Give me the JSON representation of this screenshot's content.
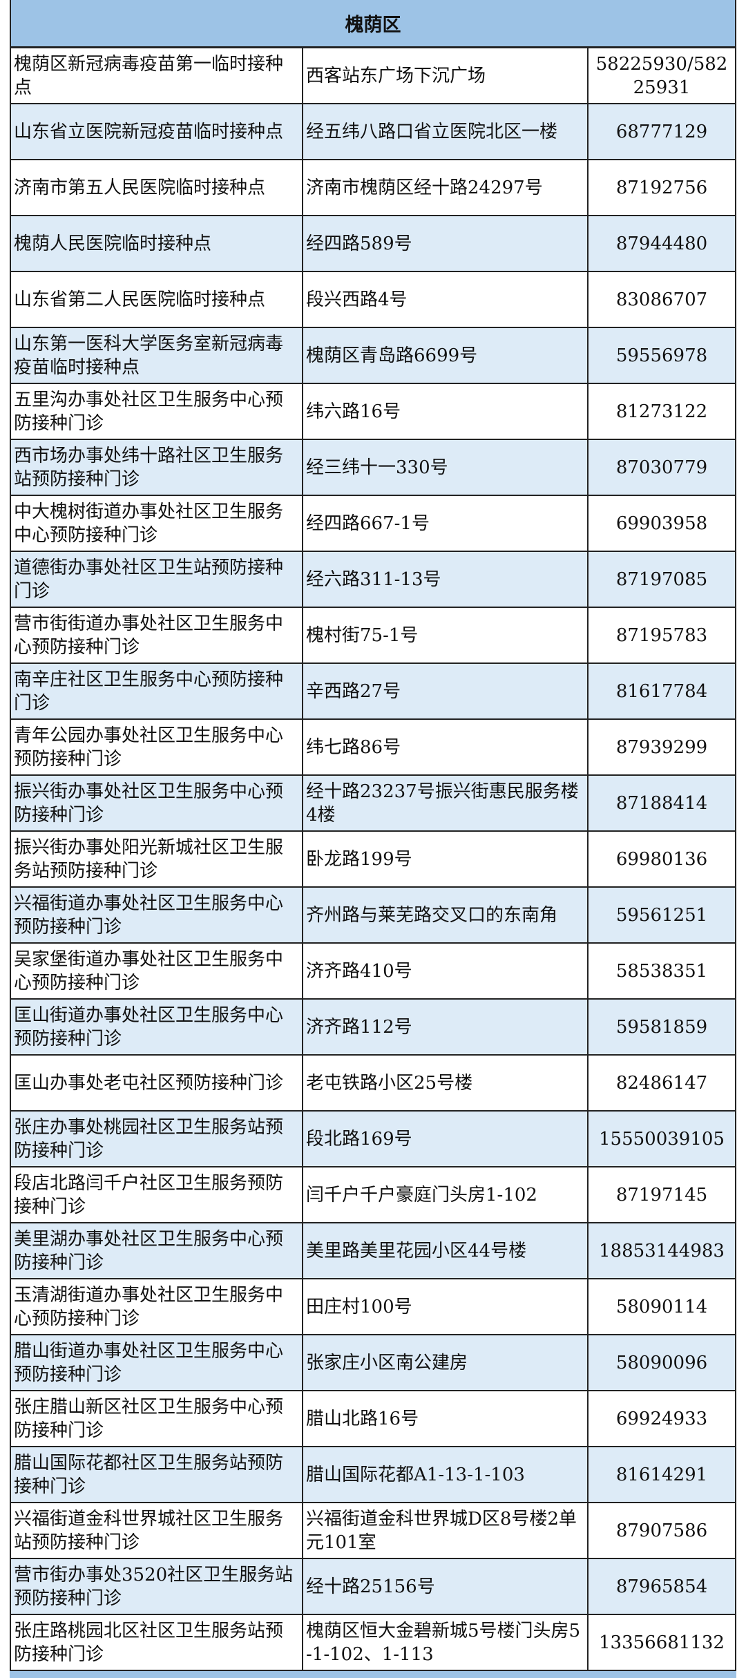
{
  "title": "槐荫区",
  "colors": {
    "header_bg": "#9dc3e6",
    "stripe_bg": "#ddebf7"
  },
  "rows": [
    {
      "name": "槐荫区新冠病毒疫苗第一临时接种点",
      "address": "西客站东广场下沉广场",
      "phone": "58225930/58225931"
    },
    {
      "name": "山东省立医院新冠疫苗临时接种点",
      "address": "经五纬八路口省立医院北区一楼",
      "phone": "68777129"
    },
    {
      "name": "济南市第五人民医院临时接种点",
      "address": "济南市槐荫区经十路24297号",
      "phone": "87192756"
    },
    {
      "name": "槐荫人民医院临时接种点",
      "address": "经四路589号",
      "phone": "87944480"
    },
    {
      "name": "山东省第二人民医院临时接种点",
      "address": "段兴西路4号",
      "phone": "83086707"
    },
    {
      "name": "山东第一医科大学医务室新冠病毒疫苗临时接种点",
      "address": "槐荫区青岛路6699号",
      "phone": "59556978"
    },
    {
      "name": "五里沟办事处社区卫生服务中心预防接种门诊",
      "address": "纬六路16号",
      "phone": "81273122"
    },
    {
      "name": "西市场办事处纬十路社区卫生服务站预防接种门诊",
      "address": "经三纬十一330号",
      "phone": "87030779"
    },
    {
      "name": "中大槐树街道办事处社区卫生服务中心预防接种门诊",
      "address": "经四路667-1号",
      "phone": "69903958"
    },
    {
      "name": "道德街办事处社区卫生站预防接种门诊",
      "address": "经六路311-13号",
      "phone": "87197085"
    },
    {
      "name": "营市街街道办事处社区卫生服务中心预防接种门诊",
      "address": "槐村街75-1号",
      "phone": "87195783"
    },
    {
      "name": "南辛庄社区卫生服务中心预防接种门诊",
      "address": "辛西路27号",
      "phone": "81617784"
    },
    {
      "name": "青年公园办事处社区卫生服务中心预防接种门诊",
      "address": "纬七路86号",
      "phone": "87939299"
    },
    {
      "name": "振兴街办事处社区卫生服务中心预防接种门诊",
      "address": "经十路23237号振兴街惠民服务楼4楼",
      "phone": "87188414"
    },
    {
      "name": "振兴街办事处阳光新城社区卫生服务站预防接种门诊",
      "address": "卧龙路199号",
      "phone": "69980136"
    },
    {
      "name": "兴福街道办事处社区卫生服务中心预防接种门诊",
      "address": "齐州路与莱芜路交叉口的东南角",
      "phone": "59561251"
    },
    {
      "name": "吴家堡街道办事处社区卫生服务中心预防接种门诊",
      "address": "济齐路410号",
      "phone": "58538351"
    },
    {
      "name": "匡山街道办事处社区卫生服务中心预防接种门诊",
      "address": "济齐路112号",
      "phone": "59581859"
    },
    {
      "name": "匡山办事处老屯社区预防接种门诊",
      "address": "老屯铁路小区25号楼",
      "phone": "82486147"
    },
    {
      "name": "张庄办事处桃园社区卫生服务站预防接种门诊",
      "address": "段北路169号",
      "phone": "15550039105"
    },
    {
      "name": "段店北路闫千户社区卫生服务预防接种门诊",
      "address": "闫千户千户豪庭门头房1-102",
      "phone": "87197145"
    },
    {
      "name": "美里湖办事处社区卫生服务中心预防接种门诊",
      "address": "美里路美里花园小区44号楼",
      "phone": "18853144983"
    },
    {
      "name": "玉清湖街道办事处社区卫生服务中心预防接种门诊",
      "address": "田庄村100号",
      "phone": "58090114"
    },
    {
      "name": "腊山街道办事处社区卫生服务中心预防接种门诊",
      "address": "张家庄小区南公建房",
      "phone": "58090096"
    },
    {
      "name": "张庄腊山新区社区卫生服务中心预防接种门诊",
      "address": "腊山北路16号",
      "phone": "69924933"
    },
    {
      "name": "腊山国际花都社区卫生服务站预防接种门诊",
      "address": "腊山国际花都A1-13-1-103",
      "phone": "81614291"
    },
    {
      "name": "兴福街道金科世界城社区卫生服务站预防接种门诊",
      "address": "兴福街道金科世界城D区8号楼2单元101室",
      "phone": "87907586"
    },
    {
      "name": "营市街办事处3520社区卫生服务站预防接种门诊",
      "address": "经十路25156号",
      "phone": "87965854"
    },
    {
      "name": "张庄路桃园北区社区卫生服务站预防接种门诊",
      "address": "槐荫区恒大金碧新城5号楼门头房5-1-102、1-113",
      "phone": "13356681132"
    }
  ]
}
